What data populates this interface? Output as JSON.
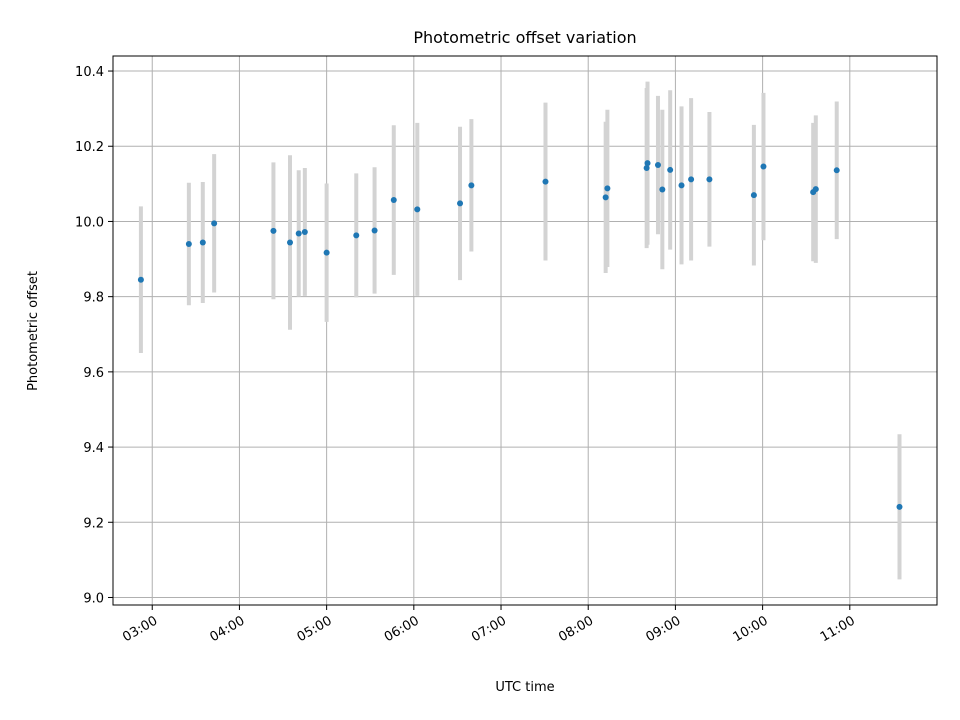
{
  "chart_data": {
    "type": "scatter",
    "title": "Photometric offset variation",
    "xlabel": "UTC time",
    "ylabel": "Photometric offset",
    "x_unit": "hours (UTC)",
    "xlim": [
      2.55,
      12.0
    ],
    "ylim": [
      8.98,
      10.44
    ],
    "x_ticks": [
      {
        "value": 3,
        "label": "03:00"
      },
      {
        "value": 4,
        "label": "04:00"
      },
      {
        "value": 5,
        "label": "05:00"
      },
      {
        "value": 6,
        "label": "06:00"
      },
      {
        "value": 7,
        "label": "07:00"
      },
      {
        "value": 8,
        "label": "08:00"
      },
      {
        "value": 9,
        "label": "09:00"
      },
      {
        "value": 10,
        "label": "10:00"
      },
      {
        "value": 11,
        "label": "11:00"
      }
    ],
    "y_ticks": [
      {
        "value": 9.0,
        "label": "9.0"
      },
      {
        "value": 9.2,
        "label": "9.2"
      },
      {
        "value": 9.4,
        "label": "9.4"
      },
      {
        "value": 9.6,
        "label": "9.6"
      },
      {
        "value": 9.8,
        "label": "9.8"
      },
      {
        "value": 10.0,
        "label": "10.0"
      },
      {
        "value": 10.2,
        "label": "10.2"
      },
      {
        "value": 10.4,
        "label": "10.4"
      }
    ],
    "grid": true,
    "marker_color": "#1f77b4",
    "errorbar_color": "#d3d3d3",
    "series": [
      {
        "points": [
          {
            "x": 2.87,
            "y": 9.845,
            "err": 0.195
          },
          {
            "x": 3.42,
            "y": 9.94,
            "err": 0.163
          },
          {
            "x": 3.58,
            "y": 9.944,
            "err": 0.161
          },
          {
            "x": 3.71,
            "y": 9.995,
            "err": 0.184
          },
          {
            "x": 4.39,
            "y": 9.975,
            "err": 0.182
          },
          {
            "x": 4.58,
            "y": 9.944,
            "err": 0.232
          },
          {
            "x": 4.68,
            "y": 9.968,
            "err": 0.168
          },
          {
            "x": 4.75,
            "y": 9.972,
            "err": 0.17
          },
          {
            "x": 5.0,
            "y": 9.917,
            "err": 0.184
          },
          {
            "x": 5.34,
            "y": 9.963,
            "err": 0.165
          },
          {
            "x": 5.55,
            "y": 9.976,
            "err": 0.168
          },
          {
            "x": 5.77,
            "y": 10.057,
            "err": 0.199
          },
          {
            "x": 6.04,
            "y": 10.032,
            "err": 0.23
          },
          {
            "x": 6.53,
            "y": 10.048,
            "err": 0.204
          },
          {
            "x": 6.66,
            "y": 10.096,
            "err": 0.176
          },
          {
            "x": 7.51,
            "y": 10.106,
            "err": 0.21
          },
          {
            "x": 8.2,
            "y": 10.064,
            "err": 0.201
          },
          {
            "x": 8.22,
            "y": 10.088,
            "err": 0.209
          },
          {
            "x": 8.67,
            "y": 10.142,
            "err": 0.213
          },
          {
            "x": 8.68,
            "y": 10.155,
            "err": 0.217
          },
          {
            "x": 8.8,
            "y": 10.15,
            "err": 0.184
          },
          {
            "x": 8.85,
            "y": 10.085,
            "err": 0.212
          },
          {
            "x": 8.94,
            "y": 10.137,
            "err": 0.212
          },
          {
            "x": 9.07,
            "y": 10.096,
            "err": 0.21
          },
          {
            "x": 9.18,
            "y": 10.112,
            "err": 0.216
          },
          {
            "x": 9.39,
            "y": 10.112,
            "err": 0.179
          },
          {
            "x": 9.9,
            "y": 10.07,
            "err": 0.187
          },
          {
            "x": 10.01,
            "y": 10.146,
            "err": 0.196
          },
          {
            "x": 10.58,
            "y": 10.078,
            "err": 0.184
          },
          {
            "x": 10.61,
            "y": 10.086,
            "err": 0.196
          },
          {
            "x": 10.85,
            "y": 10.136,
            "err": 0.183
          },
          {
            "x": 11.57,
            "y": 9.241,
            "err": 0.193
          }
        ]
      }
    ]
  }
}
